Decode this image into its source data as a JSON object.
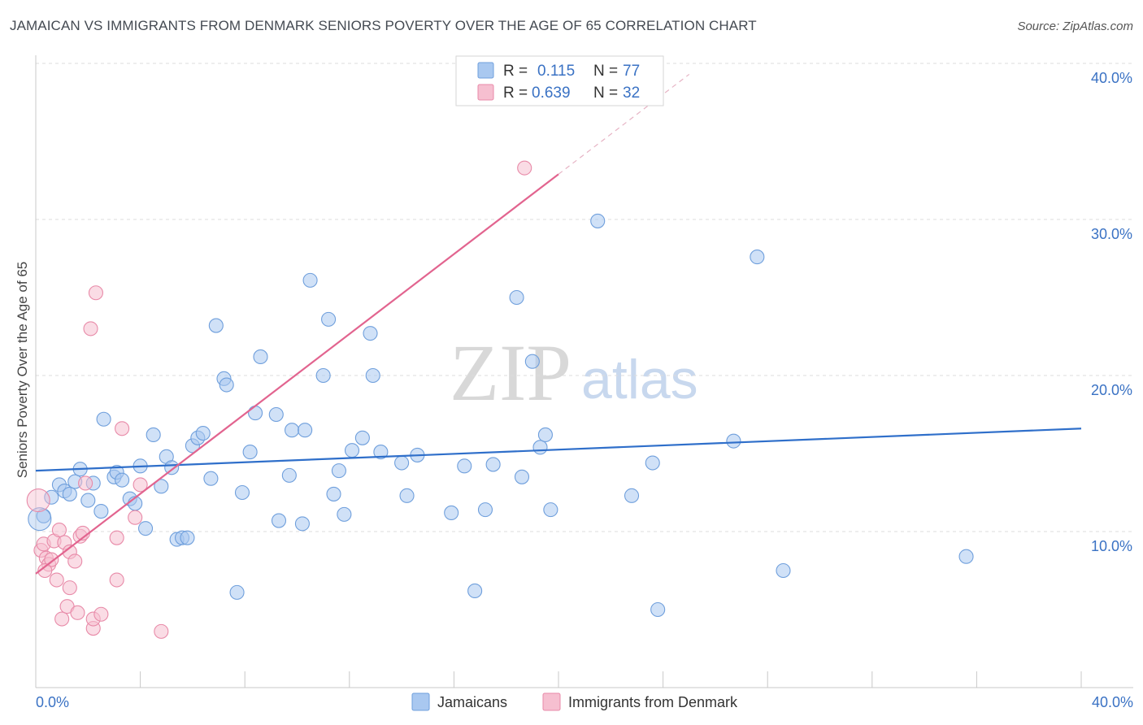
{
  "header": {
    "title": "JAMAICAN VS IMMIGRANTS FROM DENMARK SENIORS POVERTY OVER THE AGE OF 65 CORRELATION CHART",
    "source": "Source: ZipAtlas.com"
  },
  "watermark": {
    "zip": "ZIP",
    "atlas": "atlas"
  },
  "legend_top": {
    "rows": [
      {
        "r_label": "R =",
        "r_value": "0.115",
        "n_label": "N =",
        "n_value": "77"
      },
      {
        "r_label": "R =",
        "r_value": "0.639",
        "n_label": "N =",
        "n_value": "32"
      }
    ]
  },
  "legend_bottom": {
    "items": [
      {
        "label": "Jamaicans"
      },
      {
        "label": "Immigrants from Denmark"
      }
    ]
  },
  "colors": {
    "blue_fill": "#a9c8f0",
    "blue_stroke": "#6f9fdc",
    "blue_line": "#2f6fca",
    "pink_fill": "#f6bfd0",
    "pink_stroke": "#e88aa8",
    "pink_line": "#e2648f",
    "tick_text": "#3a72c4",
    "grid": "#dddddd"
  },
  "chart_data": {
    "type": "scatter",
    "title": "JAMAICAN VS IMMIGRANTS FROM DENMARK SENIORS POVERTY OVER THE AGE OF 65 CORRELATION CHART",
    "xlabel": "",
    "ylabel": "Seniors Poverty Over the Age of 65",
    "xlim": [
      0,
      40
    ],
    "ylim": [
      0,
      42
    ],
    "x_tick_labels": [
      "0.0%",
      "40.0%"
    ],
    "y_ticks": [
      10,
      20,
      30,
      40
    ],
    "y_tick_labels": [
      "10.0%",
      "20.0%",
      "30.0%",
      "40.0%"
    ],
    "grid": true,
    "legend_position": "top-center",
    "series": [
      {
        "name": "Jamaicans",
        "r": 0.115,
        "n": 77,
        "trend": {
          "x": [
            0,
            40
          ],
          "y": [
            13.9,
            16.6
          ]
        },
        "points": [
          [
            0.3,
            11.0
          ],
          [
            0.6,
            12.2
          ],
          [
            0.9,
            13.0
          ],
          [
            1.1,
            12.6
          ],
          [
            1.3,
            12.4
          ],
          [
            1.5,
            13.2
          ],
          [
            1.7,
            14.0
          ],
          [
            2.0,
            12.0
          ],
          [
            2.2,
            13.1
          ],
          [
            2.5,
            11.3
          ],
          [
            2.6,
            17.2
          ],
          [
            3.0,
            13.5
          ],
          [
            3.1,
            13.8
          ],
          [
            3.3,
            13.3
          ],
          [
            3.6,
            12.1
          ],
          [
            3.8,
            11.8
          ],
          [
            4.0,
            14.2
          ],
          [
            4.2,
            10.2
          ],
          [
            4.5,
            16.2
          ],
          [
            4.8,
            12.9
          ],
          [
            5.0,
            14.8
          ],
          [
            5.2,
            14.1
          ],
          [
            5.4,
            9.5
          ],
          [
            5.6,
            9.6
          ],
          [
            5.8,
            9.6
          ],
          [
            6.0,
            15.5
          ],
          [
            6.2,
            16.0
          ],
          [
            6.4,
            16.3
          ],
          [
            6.7,
            13.4
          ],
          [
            6.9,
            23.2
          ],
          [
            7.2,
            19.8
          ],
          [
            7.3,
            19.4
          ],
          [
            7.7,
            6.1
          ],
          [
            7.9,
            12.5
          ],
          [
            8.2,
            15.1
          ],
          [
            8.4,
            17.6
          ],
          [
            8.6,
            21.2
          ],
          [
            9.2,
            17.5
          ],
          [
            9.3,
            10.7
          ],
          [
            9.7,
            13.6
          ],
          [
            9.8,
            16.5
          ],
          [
            10.2,
            10.5
          ],
          [
            10.3,
            16.5
          ],
          [
            10.5,
            26.1
          ],
          [
            11.0,
            20.0
          ],
          [
            11.2,
            23.6
          ],
          [
            11.4,
            12.4
          ],
          [
            11.6,
            13.9
          ],
          [
            11.8,
            11.1
          ],
          [
            12.1,
            15.2
          ],
          [
            12.5,
            16.0
          ],
          [
            12.8,
            22.7
          ],
          [
            12.9,
            20.0
          ],
          [
            13.2,
            15.1
          ],
          [
            14.0,
            14.4
          ],
          [
            14.2,
            12.3
          ],
          [
            14.6,
            14.9
          ],
          [
            15.9,
            11.2
          ],
          [
            16.4,
            14.2
          ],
          [
            16.8,
            6.2
          ],
          [
            17.2,
            11.4
          ],
          [
            17.5,
            14.3
          ],
          [
            18.4,
            25.0
          ],
          [
            18.6,
            13.5
          ],
          [
            19.0,
            20.9
          ],
          [
            19.3,
            15.4
          ],
          [
            19.5,
            16.2
          ],
          [
            19.7,
            11.4
          ],
          [
            21.5,
            29.9
          ],
          [
            22.8,
            12.3
          ],
          [
            23.6,
            14.4
          ],
          [
            23.8,
            5.0
          ],
          [
            26.7,
            15.8
          ],
          [
            27.6,
            27.6
          ],
          [
            28.6,
            7.5
          ],
          [
            35.6,
            8.4
          ],
          [
            0.15,
            10.8
          ]
        ]
      },
      {
        "name": "Immigrants from Denmark",
        "r": 0.639,
        "n": 32,
        "trend": {
          "x": [
            0,
            20
          ],
          "y": [
            7.3,
            32.9
          ]
        },
        "trend_dashed": {
          "x": [
            20,
            25
          ],
          "y": [
            32.9,
            39.3
          ]
        },
        "points": [
          [
            0.1,
            12.0
          ],
          [
            0.2,
            8.8
          ],
          [
            0.3,
            9.2
          ],
          [
            0.4,
            8.3
          ],
          [
            0.5,
            7.9
          ],
          [
            0.6,
            8.2
          ],
          [
            0.7,
            9.4
          ],
          [
            0.8,
            6.9
          ],
          [
            0.9,
            10.1
          ],
          [
            1.0,
            4.4
          ],
          [
            1.1,
            9.3
          ],
          [
            1.2,
            5.2
          ],
          [
            1.3,
            8.7
          ],
          [
            1.3,
            6.4
          ],
          [
            1.5,
            8.1
          ],
          [
            1.6,
            4.8
          ],
          [
            1.7,
            9.7
          ],
          [
            1.8,
            9.9
          ],
          [
            1.9,
            13.1
          ],
          [
            2.1,
            23.0
          ],
          [
            2.2,
            3.8
          ],
          [
            2.2,
            4.4
          ],
          [
            2.3,
            25.3
          ],
          [
            2.5,
            4.7
          ],
          [
            3.1,
            9.6
          ],
          [
            3.1,
            6.9
          ],
          [
            3.3,
            16.6
          ],
          [
            3.8,
            10.9
          ],
          [
            4.0,
            13.0
          ],
          [
            4.8,
            3.6
          ],
          [
            18.7,
            33.3
          ],
          [
            0.35,
            7.5
          ]
        ]
      }
    ]
  }
}
